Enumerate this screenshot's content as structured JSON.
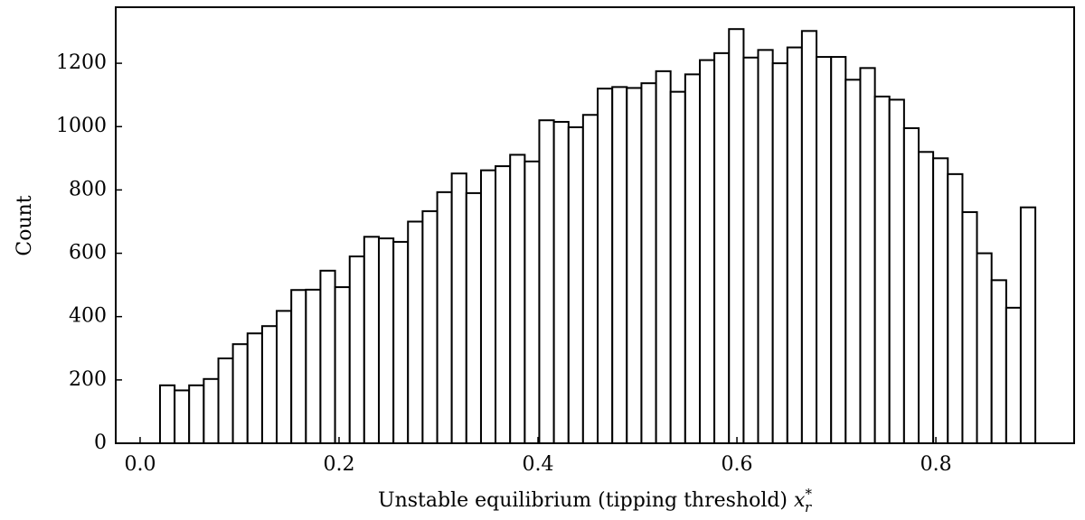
{
  "chart_data": {
    "type": "histogram",
    "xlabel": "Unstable equilibrium (tipping threshold)",
    "xlabel_var": {
      "base": "x",
      "sub": "r",
      "sup": "*"
    },
    "ylabel": "Count",
    "bins": [
      0.02,
      0.0347,
      0.0493,
      0.064,
      0.0787,
      0.0933,
      0.108,
      0.1227,
      0.1373,
      0.152,
      0.1667,
      0.1813,
      0.196,
      0.2107,
      0.2253,
      0.24,
      0.2547,
      0.2693,
      0.284,
      0.2987,
      0.3133,
      0.328,
      0.3427,
      0.3573,
      0.372,
      0.3867,
      0.4013,
      0.416,
      0.4307,
      0.4453,
      0.46,
      0.4747,
      0.4893,
      0.504,
      0.5187,
      0.5333,
      0.548,
      0.5627,
      0.5773,
      0.592,
      0.6067,
      0.6213,
      0.636,
      0.6507,
      0.6653,
      0.68,
      0.6947,
      0.7093,
      0.724,
      0.7387,
      0.7533,
      0.768,
      0.7827,
      0.7973,
      0.812,
      0.8267,
      0.8413,
      0.856,
      0.8707,
      0.8853,
      0.9
    ],
    "values": [
      183,
      167,
      183,
      203,
      268,
      313,
      347,
      370,
      418,
      484,
      485,
      545,
      493,
      590,
      652,
      647,
      636,
      700,
      733,
      793,
      852,
      790,
      862,
      875,
      911,
      890,
      1020,
      1015,
      998,
      1037,
      1120,
      1125,
      1122,
      1137,
      1175,
      1110,
      1165,
      1210,
      1232,
      1308,
      1218,
      1242,
      1200,
      1250,
      1302,
      1220,
      1220,
      1148,
      1185,
      1095,
      1085,
      995,
      920,
      900,
      850,
      730,
      600,
      515,
      428,
      745
    ],
    "color": "#ffffff",
    "edgecolor": "#000000",
    "xlim": [
      -0.0245,
      0.939
    ],
    "ylim": [
      0,
      1377
    ],
    "xticks": [
      {
        "value": 0,
        "label": "0.0"
      },
      0.2,
      0.4,
      0.6,
      0.8
    ],
    "yticks": [
      0,
      200,
      400,
      600,
      800,
      1000,
      1200
    ]
  }
}
